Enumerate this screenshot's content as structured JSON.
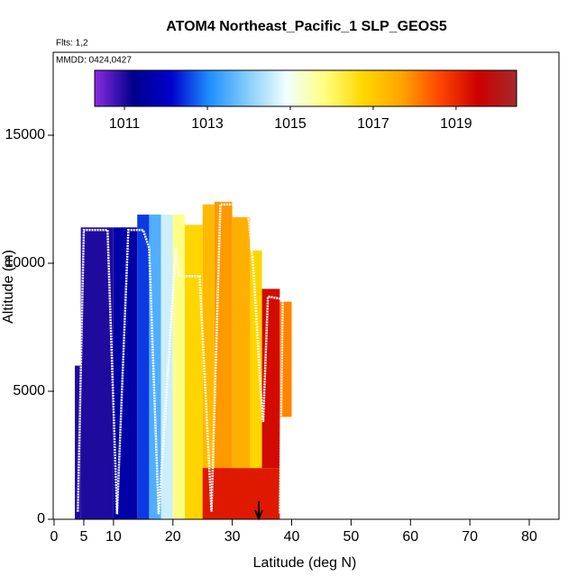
{
  "chart_data": {
    "type": "curtain",
    "title": "ATOM4 Northeast_Pacific_1 SLP_GEOS5",
    "flights_label": "Flts: 1,2",
    "dates_label": "MMDD: 0424,0427",
    "x_label": "Latitude (deg N)",
    "y_label": "Altitude (m)",
    "xlim": [
      0,
      85
    ],
    "ylim": [
      0,
      18240
    ],
    "xticks": [
      0,
      5,
      10,
      20,
      30,
      40,
      50,
      60,
      70,
      80
    ],
    "yticks": [
      0,
      5000,
      10000,
      15000
    ],
    "colorbar": {
      "lim": [
        1010.28,
        1020.46
      ],
      "ticks": [
        1011,
        1013,
        1015,
        1017,
        1019
      ],
      "colors": [
        "#8a2be2",
        "#00008b",
        "#0000cd",
        "#1e90ff",
        "#87cefa",
        "#f0ffff",
        "#ffff80",
        "#ffd700",
        "#ffa500",
        "#ff4500",
        "#cc0000",
        "#a52a2a"
      ]
    },
    "cells": [
      {
        "lat": [
          3.5,
          4.5
        ],
        "alt": [
          0,
          6000
        ],
        "value": 1011
      },
      {
        "lat": [
          4.5,
          10
        ],
        "alt": [
          0,
          11400
        ],
        "value": 1011
      },
      {
        "lat": [
          10,
          14
        ],
        "alt": [
          0,
          11400
        ],
        "value": 1011.6
      },
      {
        "lat": [
          14,
          16
        ],
        "alt": [
          0,
          11900
        ],
        "value": 1012.5
      },
      {
        "lat": [
          16,
          18
        ],
        "alt": [
          0,
          11900
        ],
        "value": 1013.5
      },
      {
        "lat": [
          18,
          20
        ],
        "alt": [
          0,
          11900
        ],
        "value": 1014.6
      },
      {
        "lat": [
          20,
          22
        ],
        "alt": [
          0,
          11900
        ],
        "value": 1015.8
      },
      {
        "lat": [
          22,
          25
        ],
        "alt": [
          0,
          11500
        ],
        "value": 1016.8
      },
      {
        "lat": [
          25,
          27
        ],
        "alt": [
          0,
          12300
        ],
        "value": 1017.3
      },
      {
        "lat": [
          27,
          30
        ],
        "alt": [
          0,
          12400
        ],
        "value": 1017.8
      },
      {
        "lat": [
          30,
          33
        ],
        "alt": [
          2000,
          11800
        ],
        "value": 1017.5
      },
      {
        "lat": [
          33,
          35
        ],
        "alt": [
          2000,
          10500
        ],
        "value": 1016.8
      },
      {
        "lat": [
          25,
          38
        ],
        "alt": [
          0,
          2000
        ],
        "value": 1019.2
      },
      {
        "lat": [
          35,
          38
        ],
        "alt": [
          2000,
          9000
        ],
        "value": 1019.4
      },
      {
        "lat": [
          38,
          40
        ],
        "alt": [
          4000,
          8500
        ],
        "value": 1018
      }
    ],
    "track": {
      "lat": [
        4.0,
        5.0,
        9.0,
        10.6,
        12.5,
        15.0,
        16.0,
        17.6,
        20.5,
        21.0,
        24.5,
        26.5,
        28.0,
        32.5,
        33.5,
        34.8,
        35.2,
        36.0,
        38.5,
        38.0
      ],
      "alt": [
        300,
        11300,
        11300,
        200,
        11300,
        11300,
        10600,
        200,
        10600,
        9500,
        9500,
        300,
        12300,
        12300,
        10000,
        5000,
        3800,
        8700,
        8600,
        200
      ]
    }
  }
}
